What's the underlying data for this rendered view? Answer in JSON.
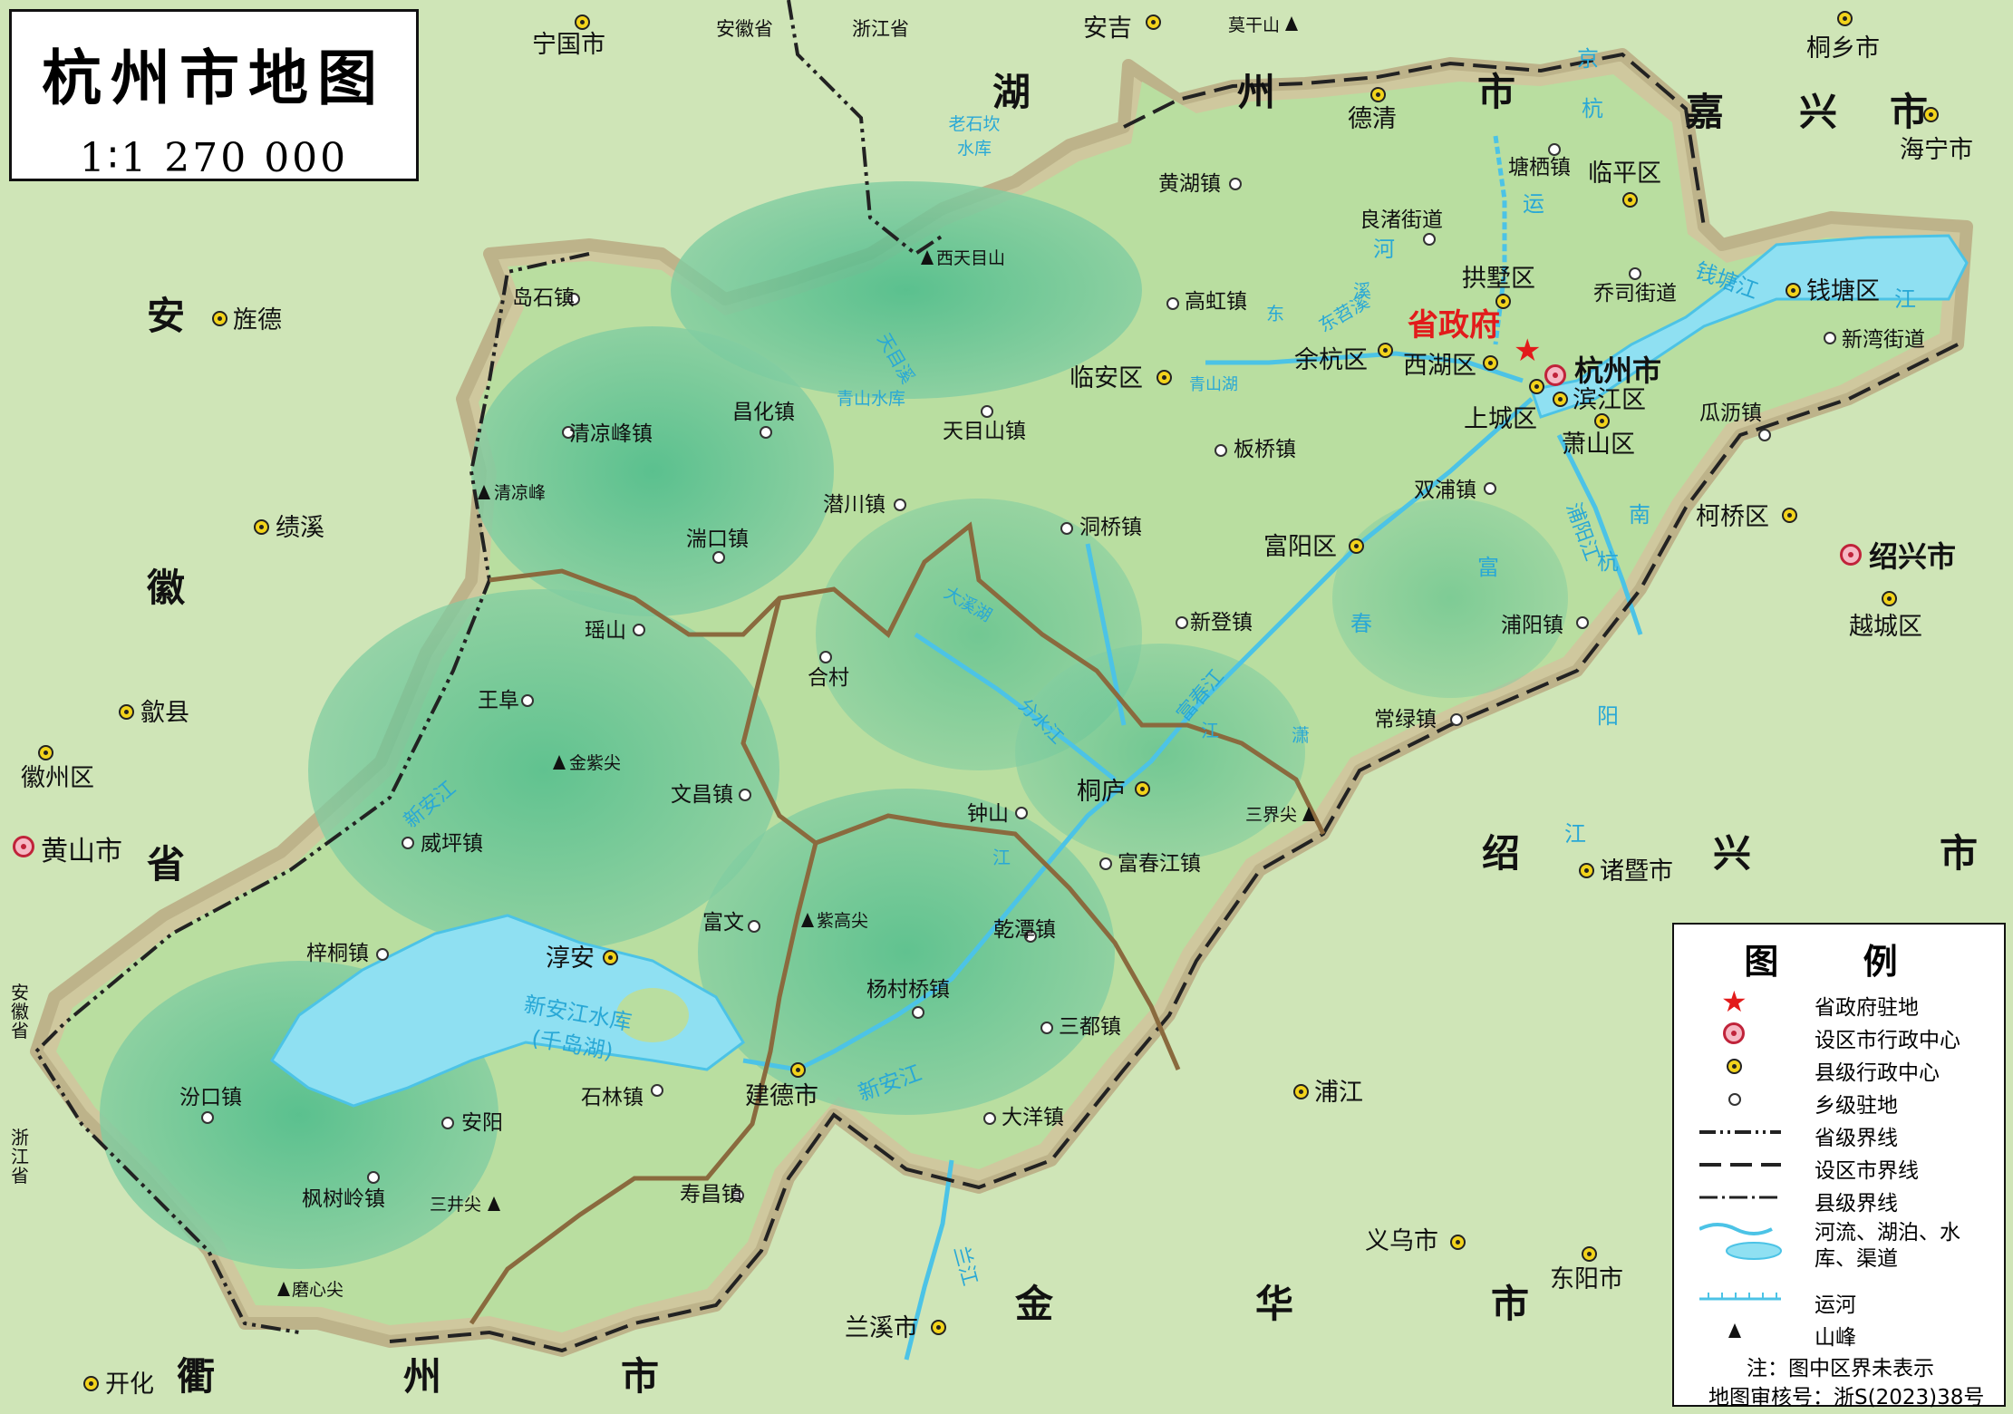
{
  "title": "杭州市地图",
  "scale": "1∶1 270 000",
  "capital_label": "省政府",
  "colors": {
    "low_green": "#cbe3a8",
    "hz_fill": "#b6dc9c",
    "mountain": "#62c79a",
    "water": "#8fe0f2",
    "river": "#4cc3e6",
    "border_band": "#cfc79f",
    "county_border": "#8a6a3e"
  },
  "cities": [
    {
      "name": "杭州市",
      "label": "杭州市",
      "bold": true
    },
    {
      "name": "黄山市",
      "label": "黄山市"
    },
    {
      "name": "绍兴市",
      "label": "绍兴市",
      "bold": true
    }
  ],
  "counties": [
    "宁国市",
    "安吉",
    "德清",
    "桐乡市",
    "海宁市",
    "临平区",
    "拱墅区",
    "钱塘区",
    "余杭区",
    "西湖区",
    "临安区",
    "滨江区",
    "上城区",
    "萧山区",
    "柯桥区",
    "越城区",
    "富阳区",
    "桐庐",
    "淳安",
    "建德市",
    "诸暨市",
    "浦江",
    "义乌市",
    "东阳市",
    "兰溪市",
    "开化",
    "旌德",
    "绩溪",
    "歙县",
    "徽州区"
  ],
  "towns": [
    "塘栖镇",
    "良渚街道",
    "乔司街道",
    "新湾街道",
    "瓜沥镇",
    "黄湖镇",
    "高虹镇",
    "板桥镇",
    "双浦镇",
    "浦阳镇",
    "岛石镇",
    "昌化镇",
    "天目山镇",
    "清凉峰镇",
    "潜川镇",
    "洞桥镇",
    "湍口镇",
    "新登镇",
    "瑶山",
    "合村",
    "常绿镇",
    "王阜",
    "文昌镇",
    "钟山",
    "富春江镇",
    "威坪镇",
    "富文",
    "乾潭镇",
    "梓桐镇",
    "杨村桥镇",
    "三都镇",
    "汾口镇",
    "安阳",
    "石林镇",
    "大洋镇",
    "枫树岭镇",
    "寿昌镇"
  ],
  "peaks": [
    "莫干山",
    "西天目山",
    "清凉峰",
    "金紫尖",
    "紫高尖",
    "三界尖",
    "三井尖",
    "磨心尖"
  ],
  "regions": [
    "湖",
    "州",
    "市",
    "嘉",
    "兴",
    "市",
    "安",
    "徽",
    "省",
    "绍",
    "兴",
    "市",
    "金",
    "华",
    "市",
    "衢",
    "州",
    "市"
  ],
  "provinces": [
    "安徽省",
    "浙江省",
    "安徽省",
    "浙江省"
  ],
  "water_labels": [
    "青山水库",
    "老石坎水库",
    "京",
    "杭",
    "运",
    "河",
    "东苕溪",
    "天目溪",
    "分水江",
    "青山湖",
    "大溪湖",
    "富春江",
    "浦阳江",
    "钱塘江",
    "江",
    "新安江",
    "新安江水库(千岛湖)",
    "新安江",
    "兰江",
    "江",
    "阳",
    "杭",
    "南",
    "富",
    "春",
    "东",
    "溪",
    "潇",
    "江",
    "江"
  ],
  "legend": {
    "title": "图  例",
    "items": [
      {
        "label": "省政府驻地",
        "symbol": "capital-star"
      },
      {
        "label": "设区市行政中心",
        "symbol": "city"
      },
      {
        "label": "县级行政中心",
        "symbol": "county"
      },
      {
        "label": "乡级驻地",
        "symbol": "town"
      },
      {
        "label": "省级界线",
        "symbol": "line-prov"
      },
      {
        "label": "设区市界线",
        "symbol": "line-city"
      },
      {
        "label": "县级界线",
        "symbol": "line-county"
      },
      {
        "label": "河流、湖泊、水库、渠道",
        "symbol": "water"
      },
      {
        "label": "运河",
        "symbol": "canal"
      },
      {
        "label": "山峰",
        "symbol": "peak"
      }
    ],
    "note": "注：图中区界未表示",
    "review": "地图审核号：浙S(2023)38号"
  }
}
